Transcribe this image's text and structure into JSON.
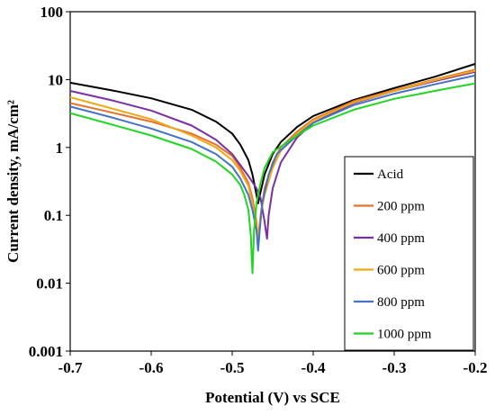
{
  "chart_data": {
    "type": "line",
    "xlabel": "Potential (V) vs SCE",
    "ylabel": "Current density, mA/cm²",
    "xlim": [
      -0.7,
      -0.2
    ],
    "ylim": [
      0.001,
      100
    ],
    "yscale": "log",
    "grid": false,
    "legend_position": "bottom-right",
    "x_ticks": [
      -0.7,
      -0.6,
      -0.5,
      -0.4,
      -0.3,
      -0.2
    ],
    "x_tick_labels": [
      "-0.7",
      "-0.6",
      "-0.5",
      "-0.4",
      "-0.3",
      "-0.2"
    ],
    "y_ticks": [
      0.001,
      0.01,
      0.1,
      1,
      10,
      100
    ],
    "y_tick_labels": [
      "0.001",
      "0.01",
      "0.1",
      "1",
      "10",
      "100"
    ],
    "series": [
      {
        "name": "Acid",
        "color": "#000000",
        "x": [
          -0.7,
          -0.65,
          -0.6,
          -0.55,
          -0.52,
          -0.5,
          -0.49,
          -0.48,
          -0.475,
          -0.47,
          -0.468,
          -0.465,
          -0.46,
          -0.45,
          -0.44,
          -0.42,
          -0.4,
          -0.35,
          -0.3,
          -0.25,
          -0.2
        ],
        "y": [
          9.0,
          7.0,
          5.3,
          3.6,
          2.4,
          1.6,
          1.1,
          0.65,
          0.4,
          0.2,
          0.15,
          0.22,
          0.4,
          0.8,
          1.2,
          2.0,
          2.9,
          5.0,
          7.5,
          11.0,
          17.0
        ]
      },
      {
        "name": "200 ppm",
        "color": "#e8702a",
        "x": [
          -0.7,
          -0.65,
          -0.6,
          -0.55,
          -0.52,
          -0.5,
          -0.49,
          -0.48,
          -0.475,
          -0.47,
          -0.468,
          -0.465,
          -0.46,
          -0.45,
          -0.44,
          -0.42,
          -0.4,
          -0.35,
          -0.3,
          -0.25,
          -0.2
        ],
        "y": [
          4.5,
          3.3,
          2.4,
          1.6,
          1.1,
          0.75,
          0.5,
          0.3,
          0.18,
          0.08,
          0.035,
          0.1,
          0.25,
          0.6,
          1.0,
          1.7,
          2.6,
          4.8,
          7.0,
          10.0,
          14.0
        ]
      },
      {
        "name": "400 ppm",
        "color": "#7b2fa3",
        "x": [
          -0.7,
          -0.65,
          -0.6,
          -0.55,
          -0.52,
          -0.5,
          -0.49,
          -0.48,
          -0.47,
          -0.465,
          -0.46,
          -0.457,
          -0.455,
          -0.45,
          -0.44,
          -0.42,
          -0.4,
          -0.35,
          -0.3,
          -0.25,
          -0.2
        ],
        "y": [
          6.8,
          5.0,
          3.5,
          2.1,
          1.3,
          0.8,
          0.55,
          0.38,
          0.25,
          0.18,
          0.08,
          0.045,
          0.1,
          0.25,
          0.6,
          1.4,
          2.3,
          4.5,
          6.8,
          9.5,
          13.0
        ]
      },
      {
        "name": "600 ppm",
        "color": "#f0a818",
        "x": [
          -0.7,
          -0.65,
          -0.6,
          -0.55,
          -0.52,
          -0.5,
          -0.49,
          -0.48,
          -0.475,
          -0.47,
          -0.468,
          -0.465,
          -0.46,
          -0.45,
          -0.44,
          -0.42,
          -0.4,
          -0.35,
          -0.3,
          -0.25,
          -0.2
        ],
        "y": [
          5.5,
          3.8,
          2.6,
          1.5,
          1.0,
          0.65,
          0.45,
          0.27,
          0.15,
          0.07,
          0.05,
          0.1,
          0.2,
          0.5,
          0.9,
          1.6,
          2.5,
          4.6,
          6.8,
          9.8,
          13.5
        ]
      },
      {
        "name": "800 ppm",
        "color": "#4472c4",
        "x": [
          -0.7,
          -0.65,
          -0.6,
          -0.55,
          -0.52,
          -0.5,
          -0.49,
          -0.48,
          -0.475,
          -0.47,
          -0.468,
          -0.466,
          -0.463,
          -0.455,
          -0.445,
          -0.42,
          -0.4,
          -0.35,
          -0.3,
          -0.25,
          -0.2
        ],
        "y": [
          4.0,
          2.8,
          1.9,
          1.2,
          0.8,
          0.52,
          0.35,
          0.2,
          0.12,
          0.06,
          0.03,
          0.06,
          0.15,
          0.4,
          0.8,
          1.5,
          2.3,
          4.2,
          6.2,
          8.5,
          11.5
        ]
      },
      {
        "name": "1000 ppm",
        "color": "#22d522",
        "x": [
          -0.7,
          -0.65,
          -0.6,
          -0.55,
          -0.52,
          -0.5,
          -0.49,
          -0.485,
          -0.48,
          -0.477,
          -0.475,
          -0.473,
          -0.47,
          -0.465,
          -0.46,
          -0.45,
          -0.42,
          -0.4,
          -0.35,
          -0.3,
          -0.25,
          -0.2
        ],
        "y": [
          3.2,
          2.2,
          1.5,
          0.95,
          0.62,
          0.4,
          0.28,
          0.2,
          0.12,
          0.05,
          0.014,
          0.06,
          0.15,
          0.3,
          0.5,
          0.85,
          1.5,
          2.1,
          3.6,
          5.2,
          6.8,
          8.8
        ]
      }
    ]
  }
}
